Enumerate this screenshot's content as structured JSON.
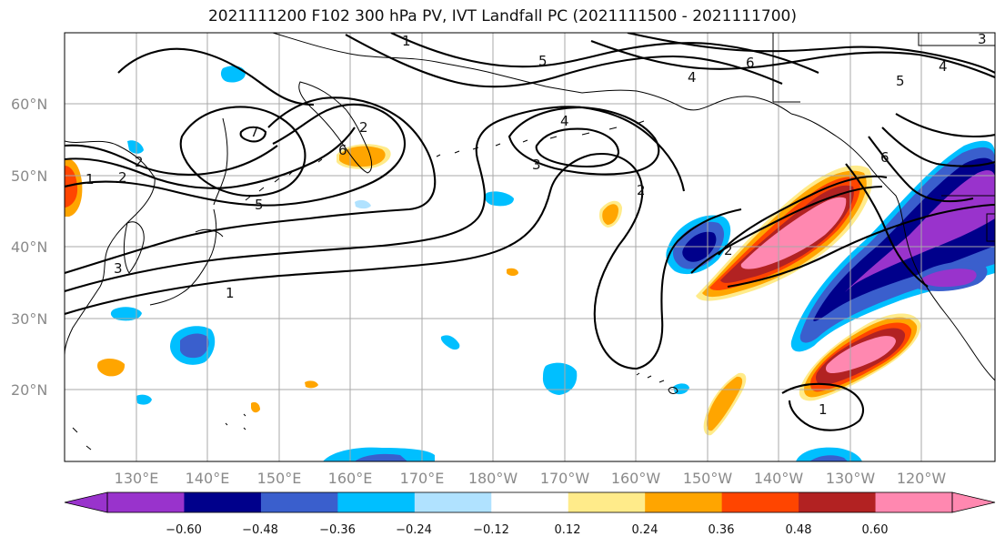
{
  "title": "2021111200 F102 300 hPa PV, IVT Landfall PC (2021111500 - 2021111700)",
  "lat_ticks": [
    "60°N",
    "50°N",
    "40°N",
    "30°N",
    "20°N"
  ],
  "lon_ticks": [
    "130°E",
    "140°E",
    "150°E",
    "160°E",
    "170°E",
    "180°W",
    "170°W",
    "160°W",
    "150°W",
    "140°W",
    "130°W",
    "120°W"
  ],
  "colorbar": {
    "ticks": [
      "−0.60",
      "−0.48",
      "−0.36",
      "−0.24",
      "−0.12",
      "0.12",
      "0.24",
      "0.36",
      "0.48",
      "0.60"
    ],
    "colors": [
      "#9933cc",
      "#00008b",
      "#3a5fcd",
      "#00bfff",
      "#b0e2ff",
      "#ffffff",
      "#ffeb8a",
      "#ffa500",
      "#ff4500",
      "#b22222",
      "#ff88b0"
    ]
  },
  "contour_labels": [
    "1",
    "2",
    "3",
    "4",
    "5",
    "6",
    "7",
    "1",
    "2",
    "4",
    "5",
    "6",
    "4",
    "2",
    "1",
    "2",
    "3",
    "6",
    "1",
    "2",
    "3",
    "5"
  ]
}
